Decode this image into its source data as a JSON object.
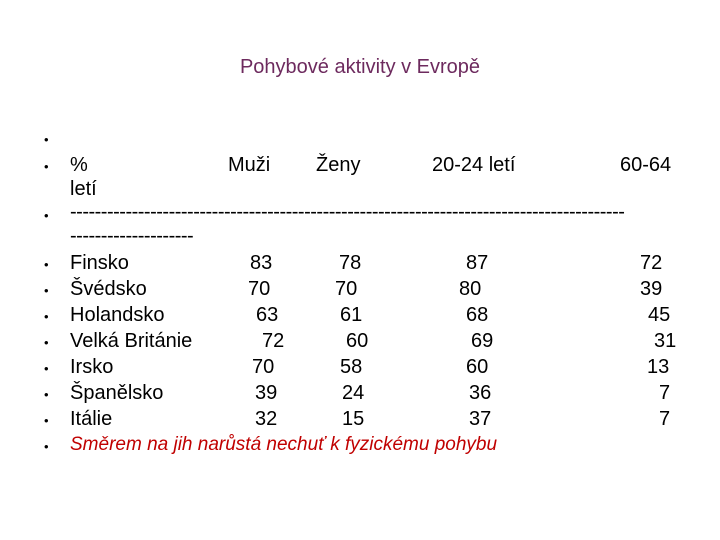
{
  "title": "Pohybové aktivity v Evropě",
  "header": {
    "percent": "%",
    "men": "Muži",
    "women": "Ženy",
    "age_young": "20-24 letí",
    "age_old_part1": "60-64",
    "age_old_part2": "letí"
  },
  "separator_line1": "------------------------------------------------------------------------------------------",
  "separator_line2": "--------------------",
  "rows": [
    {
      "country": "Finsko",
      "men": "83",
      "women": "78",
      "age_young": "87",
      "age_old": "72"
    },
    {
      "country": "Švédsko",
      "men": "70",
      "women": "70",
      "age_young": "80",
      "age_old": "39"
    },
    {
      "country": "Holandsko",
      "men": "63",
      "women": "61",
      "age_young": "68",
      "age_old": "45"
    },
    {
      "country": "Velká Británie",
      "men": "72",
      "women": "60",
      "age_young": "69",
      "age_old": "31"
    },
    {
      "country": "Irsko",
      "men": "70",
      "women": "58",
      "age_young": "60",
      "age_old": "13"
    },
    {
      "country": "Španělsko",
      "men": "39",
      "women": "24",
      "age_young": "36",
      "age_old": "7"
    },
    {
      "country": "Itálie",
      "men": "32",
      "women": "15",
      "age_young": "37",
      "age_old": "7"
    }
  ],
  "conclusion": "Směrem na jih narůstá nechuť k fyzickému pohybu",
  "colors": {
    "title": "#6d2a5e",
    "conclusion": "#c00000"
  }
}
